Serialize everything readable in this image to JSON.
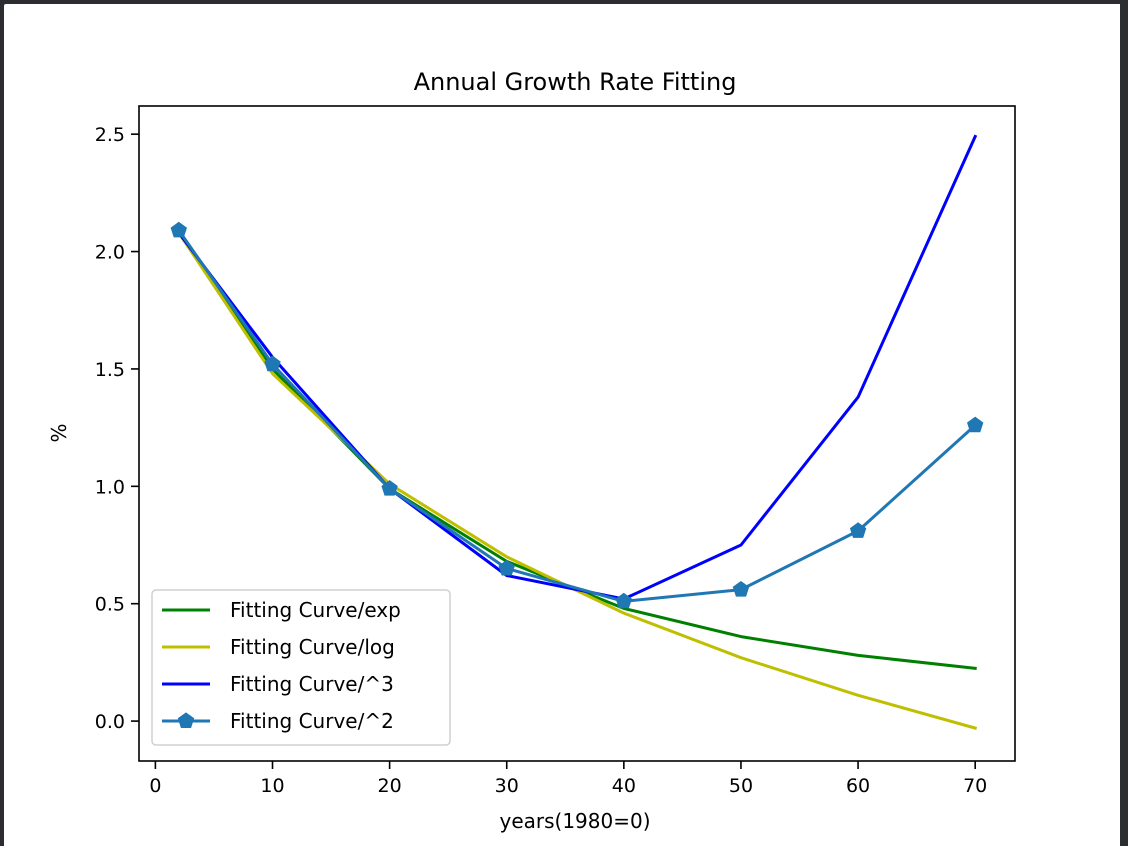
{
  "chart_data": {
    "type": "line",
    "title": "Annual Growth Rate Fitting",
    "xlabel": "years(1980=0)",
    "ylabel": "%",
    "xlim": [
      -1.4,
      73.4
    ],
    "ylim": [
      -0.17,
      2.62
    ],
    "x_ticks": [
      "0",
      "10",
      "20",
      "30",
      "40",
      "50",
      "60",
      "70"
    ],
    "y_ticks": [
      "0.0",
      "0.5",
      "1.0",
      "1.5",
      "2.0",
      "2.5"
    ],
    "x_tick_values": [
      0,
      10,
      20,
      30,
      40,
      50,
      60,
      70
    ],
    "y_tick_values": [
      0.0,
      0.5,
      1.0,
      1.5,
      2.0,
      2.5
    ],
    "grid": false,
    "legend_position": "lower-left",
    "x": [
      2,
      10,
      20,
      30,
      40,
      50,
      60,
      70
    ],
    "series": [
      {
        "name": "Fitting Curve/exp",
        "color": "#008000",
        "marker": "none",
        "values": [
          2.08,
          1.5,
          0.99,
          0.68,
          0.48,
          0.36,
          0.28,
          0.225
        ]
      },
      {
        "name": "Fitting Curve/log",
        "color": "#bfbf00",
        "marker": "none",
        "values": [
          2.08,
          1.48,
          1.01,
          0.7,
          0.46,
          0.27,
          0.11,
          -0.03
        ]
      },
      {
        "name": "Fitting Curve/^3",
        "color": "#0000ff",
        "marker": "none",
        "values": [
          2.08,
          1.55,
          0.99,
          0.62,
          0.52,
          0.75,
          1.38,
          2.49
        ]
      },
      {
        "name": "Fitting Curve/^2",
        "color": "#1f77b4",
        "marker": "pentagon",
        "values": [
          2.09,
          1.52,
          0.99,
          0.65,
          0.51,
          0.56,
          0.81,
          1.26
        ]
      }
    ]
  }
}
